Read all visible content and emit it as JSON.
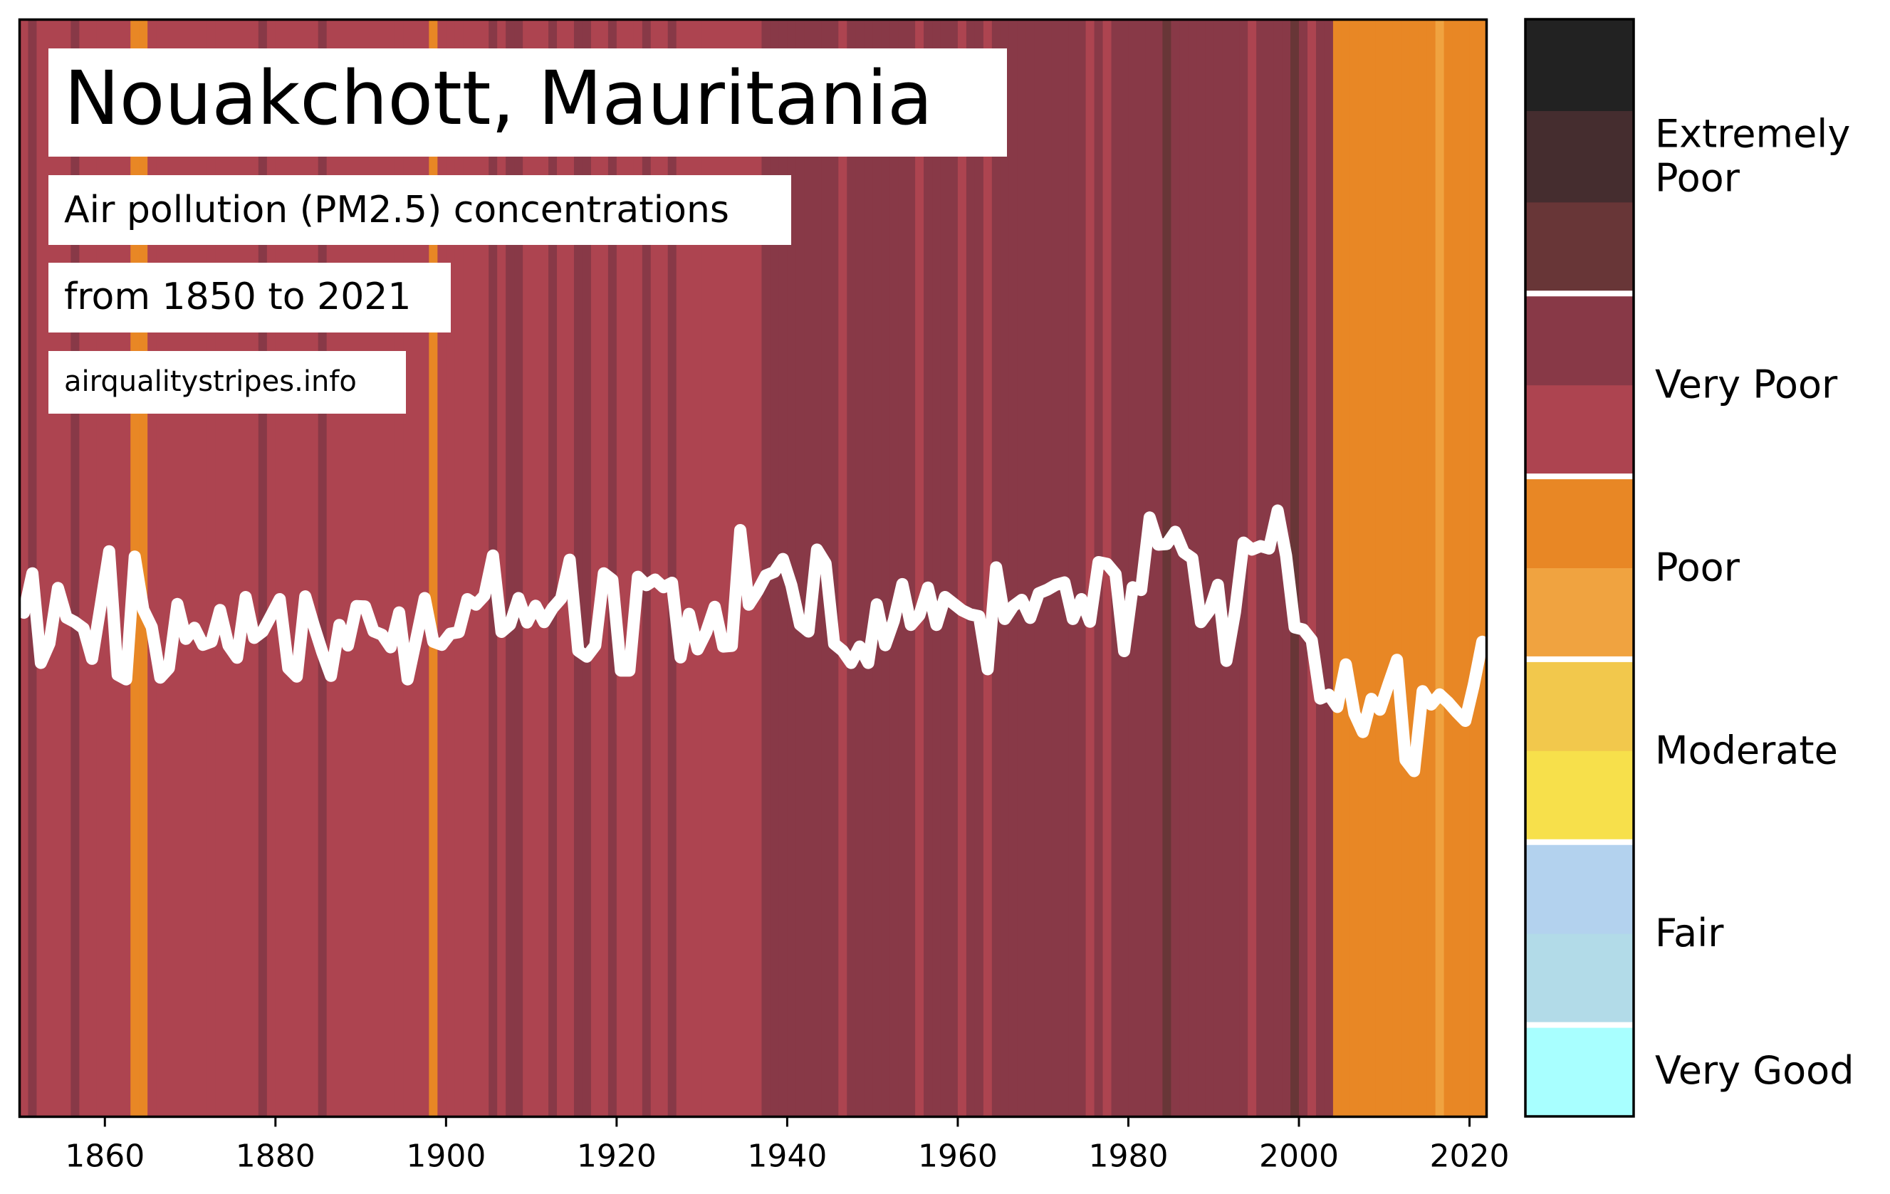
{
  "title": "Nouakchott, Mauritania",
  "subtitle": "Air pollution (PM2.5) concentrations",
  "period": "from 1850 to 2021",
  "source": "airqualitystripes.info",
  "colors": {
    "frame": "#000000",
    "line": "#ffffff",
    "stripe_very_poor_light": "#ad4450",
    "stripe_very_poor_dark": "#883947",
    "stripe_extremely_dark": "#683637",
    "stripe_poor": "#e88725",
    "stripe_poor_light": "#f0a340"
  },
  "legend": {
    "categories": [
      {
        "label": "Very Good",
        "colors": [
          "#a8ffff"
        ]
      },
      {
        "label": "Fair",
        "colors": [
          "#b2dbe8",
          "#b3d2ee"
        ]
      },
      {
        "label": "Moderate",
        "colors": [
          "#f7e04b",
          "#f2c84c"
        ]
      },
      {
        "label": "Poor",
        "colors": [
          "#f0a340",
          "#e88725"
        ]
      },
      {
        "label": "Very Poor",
        "colors": [
          "#ad4450",
          "#883947"
        ]
      },
      {
        "label": "Extremely\nPoor",
        "colors": [
          "#683637",
          "#452d2f",
          "#222222"
        ]
      }
    ]
  },
  "chart_data": {
    "type": "line",
    "title": "Nouakchott, Mauritania",
    "xlabel": "",
    "ylabel": "",
    "xlim": [
      1850,
      2022
    ],
    "x_ticks": [
      1860,
      1880,
      1900,
      1920,
      1940,
      1960,
      1980,
      2000,
      2020
    ],
    "grid": false,
    "legend_placement": "right",
    "stripe_color_index": "0 = Poor, 1 = Poor (light), 2 = Very Poor (light), 3 = Very Poor (dark), 4 = Extremely Poor",
    "stripe_start_year": 1850,
    "stripe_codes": [
      2,
      3,
      2,
      2,
      2,
      2,
      3,
      2,
      2,
      2,
      2,
      2,
      2,
      0,
      0,
      2,
      2,
      2,
      2,
      2,
      2,
      2,
      2,
      2,
      2,
      2,
      2,
      2,
      3,
      2,
      2,
      2,
      2,
      2,
      2,
      3,
      2,
      2,
      2,
      2,
      2,
      2,
      2,
      2,
      2,
      2,
      2,
      2,
      0,
      2,
      2,
      2,
      2,
      2,
      2,
      3,
      2,
      3,
      3,
      2,
      2,
      2,
      3,
      2,
      2,
      3,
      3,
      2,
      2,
      3,
      2,
      2,
      2,
      3,
      2,
      2,
      3,
      2,
      2,
      2,
      2,
      2,
      2,
      2,
      2,
      2,
      2,
      3,
      3,
      3,
      3,
      3,
      3,
      3,
      3,
      3,
      2,
      3,
      3,
      3,
      3,
      3,
      3,
      3,
      3,
      2,
      3,
      3,
      3,
      3,
      2,
      3,
      3,
      2,
      3,
      3,
      3,
      3,
      3,
      3,
      3,
      3,
      3,
      3,
      3,
      2,
      3,
      2,
      3,
      3,
      3,
      3,
      3,
      3,
      4,
      3,
      3,
      3,
      3,
      3,
      3,
      3,
      3,
      3,
      2,
      3,
      3,
      3,
      3,
      4,
      3,
      2,
      3,
      3,
      0,
      0,
      0,
      0,
      0,
      0,
      0,
      0,
      0,
      0,
      0,
      0,
      1,
      0,
      0,
      0,
      0,
      0
    ],
    "series": [
      {
        "name": "",
        "x": [
          1850,
          1851,
          1852,
          1853,
          1854,
          1855,
          1856,
          1857,
          1858,
          1859,
          1860,
          1861,
          1862,
          1863,
          1864,
          1865,
          1866,
          1867,
          1868,
          1869,
          1870,
          1871,
          1872,
          1873,
          1874,
          1875,
          1876,
          1877,
          1878,
          1879,
          1880,
          1881,
          1882,
          1883,
          1884,
          1885,
          1886,
          1887,
          1888,
          1889,
          1890,
          1891,
          1892,
          1893,
          1894,
          1895,
          1896,
          1897,
          1898,
          1899,
          1900,
          1901,
          1902,
          1903,
          1904,
          1905,
          1906,
          1907,
          1908,
          1909,
          1910,
          1911,
          1912,
          1913,
          1914,
          1915,
          1916,
          1917,
          1918,
          1919,
          1920,
          1921,
          1922,
          1923,
          1924,
          1925,
          1926,
          1927,
          1928,
          1929,
          1930,
          1931,
          1932,
          1933,
          1934,
          1935,
          1936,
          1937,
          1938,
          1939,
          1940,
          1941,
          1942,
          1943,
          1944,
          1945,
          1946,
          1947,
          1948,
          1949,
          1950,
          1951,
          1952,
          1953,
          1954,
          1955,
          1956,
          1957,
          1958,
          1959,
          1960,
          1961,
          1962,
          1963,
          1964,
          1965,
          1966,
          1967,
          1968,
          1969,
          1970,
          1971,
          1972,
          1973,
          1974,
          1975,
          1976,
          1977,
          1978,
          1979,
          1980,
          1981,
          1982,
          1983,
          1984,
          1985,
          1986,
          1987,
          1988,
          1989,
          1990,
          1991,
          1992,
          1993,
          1994,
          1995,
          1996,
          1997,
          1998,
          1999,
          2000,
          2001,
          2002,
          2003,
          2004,
          2005,
          2006,
          2007,
          2008,
          2009,
          2010,
          2011,
          2012,
          2013,
          2014,
          2015,
          2016,
          2017,
          2018,
          2019,
          2020,
          2021
        ],
        "y": [
          0.509,
          0.622,
          0.365,
          0.421,
          0.58,
          0.495,
          0.482,
          0.464,
          0.377,
          0.529,
          0.685,
          0.331,
          0.318,
          0.67,
          0.518,
          0.468,
          0.323,
          0.35,
          0.534,
          0.434,
          0.466,
          0.417,
          0.426,
          0.517,
          0.415,
          0.38,
          0.554,
          0.437,
          0.455,
          0.501,
          0.548,
          0.35,
          0.326,
          0.556,
          0.472,
          0.395,
          0.328,
          0.474,
          0.415,
          0.528,
          0.527,
          0.456,
          0.446,
          0.41,
          0.51,
          0.318,
          0.433,
          0.551,
          0.426,
          0.417,
          0.449,
          0.453,
          0.548,
          0.532,
          0.558,
          0.673,
          0.454,
          0.475,
          0.551,
          0.481,
          0.529,
          0.482,
          0.522,
          0.55,
          0.661,
          0.4,
          0.383,
          0.415,
          0.622,
          0.603,
          0.343,
          0.343,
          0.612,
          0.588,
          0.604,
          0.582,
          0.595,
          0.381,
          0.506,
          0.404,
          0.453,
          0.526,
          0.412,
          0.414,
          0.746,
          0.532,
          0.57,
          0.616,
          0.626,
          0.663,
          0.587,
          0.475,
          0.455,
          0.69,
          0.65,
          0.42,
          0.4,
          0.365,
          0.412,
          0.365,
          0.533,
          0.416,
          0.486,
          0.591,
          0.474,
          0.502,
          0.581,
          0.474,
          0.554,
          0.535,
          0.516,
          0.504,
          0.499,
          0.347,
          0.639,
          0.491,
          0.528,
          0.546,
          0.494,
          0.565,
          0.575,
          0.589,
          0.596,
          0.491,
          0.548,
          0.483,
          0.654,
          0.649,
          0.62,
          0.399,
          0.582,
          0.574,
          0.782,
          0.704,
          0.706,
          0.741,
          0.682,
          0.665,
          0.482,
          0.515,
          0.589,
          0.371,
          0.511,
          0.71,
          0.69,
          0.7,
          0.693,
          0.802,
          0.672,
          0.467,
          0.461,
          0.43,
          0.263,
          0.274,
          0.239,
          0.361,
          0.22,
          0.167,
          0.262,
          0.231,
          0.304,
          0.374,
          0.087,
          0.055,
          0.284,
          0.246,
          0.275,
          0.252,
          0.224,
          0.199,
          0.302,
          0.426
        ]
      }
    ]
  }
}
